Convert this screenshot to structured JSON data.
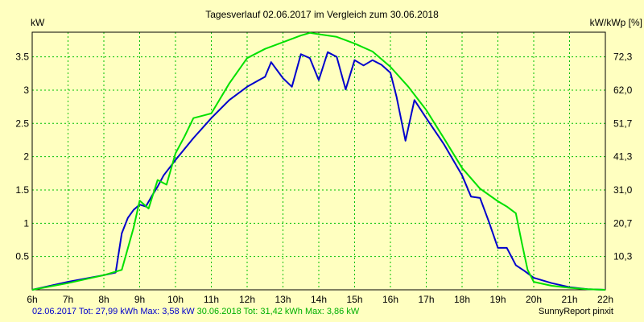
{
  "colors": {
    "background": "#ffffc0",
    "grid": "#00c000",
    "axis": "#000000",
    "series_2017": "#0000cc",
    "series_2018": "#00e000"
  },
  "footer": {
    "series_2017_stats": "02.06.2017 Tot: 27,99 kWh Max: 3,58 kW",
    "series_2018_stats": "30.06.2018 Tot: 31,42 kWh Max: 3,86 kW",
    "credit": "SunnyReport pinxit"
  },
  "chart_data": {
    "type": "line",
    "title": "Tagesverlauf 02.06.2017 im Vergleich zum 30.06.2018",
    "ylabel_left": "kW",
    "ylabel_right": "kW/kWp [%]",
    "xlim": [
      6,
      22
    ],
    "ylim": [
      0,
      3.87
    ],
    "x_ticks": [
      {
        "v": 6,
        "label": "6h"
      },
      {
        "v": 7,
        "label": "7h"
      },
      {
        "v": 8,
        "label": "8h"
      },
      {
        "v": 9,
        "label": "9h"
      },
      {
        "v": 10,
        "label": "10h"
      },
      {
        "v": 11,
        "label": "11h"
      },
      {
        "v": 12,
        "label": "12h"
      },
      {
        "v": 13,
        "label": "13h"
      },
      {
        "v": 14,
        "label": "14h"
      },
      {
        "v": 15,
        "label": "15h"
      },
      {
        "v": 16,
        "label": "16h"
      },
      {
        "v": 17,
        "label": "17h"
      },
      {
        "v": 18,
        "label": "18h"
      },
      {
        "v": 19,
        "label": "19h"
      },
      {
        "v": 20,
        "label": "20h"
      },
      {
        "v": 21,
        "label": "21h"
      },
      {
        "v": 22,
        "label": "22h"
      }
    ],
    "y_ticks_left": [
      {
        "v": 0.5,
        "label": "0.5"
      },
      {
        "v": 1,
        "label": "1"
      },
      {
        "v": 1.5,
        "label": "1.5"
      },
      {
        "v": 2,
        "label": "2"
      },
      {
        "v": 2.5,
        "label": "2.5"
      },
      {
        "v": 3,
        "label": "3"
      },
      {
        "v": 3.5,
        "label": "3.5"
      }
    ],
    "y_ticks_right": [
      {
        "v": 0.5,
        "label": "10,3"
      },
      {
        "v": 1.0,
        "label": "20,7"
      },
      {
        "v": 1.5,
        "label": "31,0"
      },
      {
        "v": 2.0,
        "label": "41,3"
      },
      {
        "v": 2.5,
        "label": "51,7"
      },
      {
        "v": 3.0,
        "label": "62,0"
      },
      {
        "v": 3.5,
        "label": "72,3"
      }
    ],
    "grid": true,
    "series": [
      {
        "name": "02.06.2017",
        "color": "#0000cc",
        "x": [
          6,
          7,
          8,
          8.33,
          8.5,
          8.67,
          8.83,
          9,
          9.17,
          9.33,
          9.5,
          9.67,
          10,
          10.5,
          11,
          11.5,
          12,
          12.33,
          12.5,
          12.67,
          13,
          13.25,
          13.5,
          13.75,
          14,
          14.25,
          14.5,
          14.75,
          15,
          15.25,
          15.5,
          15.75,
          16,
          16.17,
          16.42,
          16.67,
          17,
          17.5,
          18,
          18.25,
          18.5,
          18.75,
          19,
          19.25,
          19.5,
          19.75,
          20,
          20.5,
          21,
          21.5,
          22
        ],
        "values": [
          0,
          0.12,
          0.22,
          0.26,
          0.85,
          1.08,
          1.2,
          1.28,
          1.25,
          1.4,
          1.55,
          1.72,
          1.95,
          2.28,
          2.58,
          2.85,
          3.05,
          3.15,
          3.2,
          3.42,
          3.18,
          3.05,
          3.54,
          3.48,
          3.15,
          3.57,
          3.5,
          3.01,
          3.45,
          3.37,
          3.45,
          3.38,
          3.26,
          2.9,
          2.24,
          2.85,
          2.58,
          2.18,
          1.72,
          1.4,
          1.38,
          1.02,
          0.63,
          0.63,
          0.37,
          0.28,
          0.18,
          0.1,
          0.04,
          0.01,
          0
        ]
      },
      {
        "name": "30.06.2018",
        "color": "#00e000",
        "x": [
          6,
          7,
          8,
          8.5,
          8.83,
          9,
          9.25,
          9.5,
          9.75,
          10,
          10.25,
          10.5,
          11,
          11.5,
          12,
          12.5,
          13,
          13.5,
          13.75,
          14,
          14.5,
          15,
          15.5,
          16,
          16.5,
          17,
          17.5,
          18,
          18.5,
          19,
          19.25,
          19.5,
          19.67,
          19.83,
          20,
          20.5,
          21,
          21.5,
          22
        ],
        "values": [
          0,
          0.1,
          0.22,
          0.3,
          0.93,
          1.34,
          1.22,
          1.65,
          1.58,
          2.05,
          2.3,
          2.58,
          2.65,
          3.1,
          3.48,
          3.62,
          3.72,
          3.82,
          3.86,
          3.84,
          3.8,
          3.7,
          3.58,
          3.35,
          3.05,
          2.7,
          2.27,
          1.83,
          1.52,
          1.33,
          1.25,
          1.15,
          0.7,
          0.3,
          0.12,
          0.06,
          0.03,
          0.01,
          0
        ]
      }
    ]
  }
}
